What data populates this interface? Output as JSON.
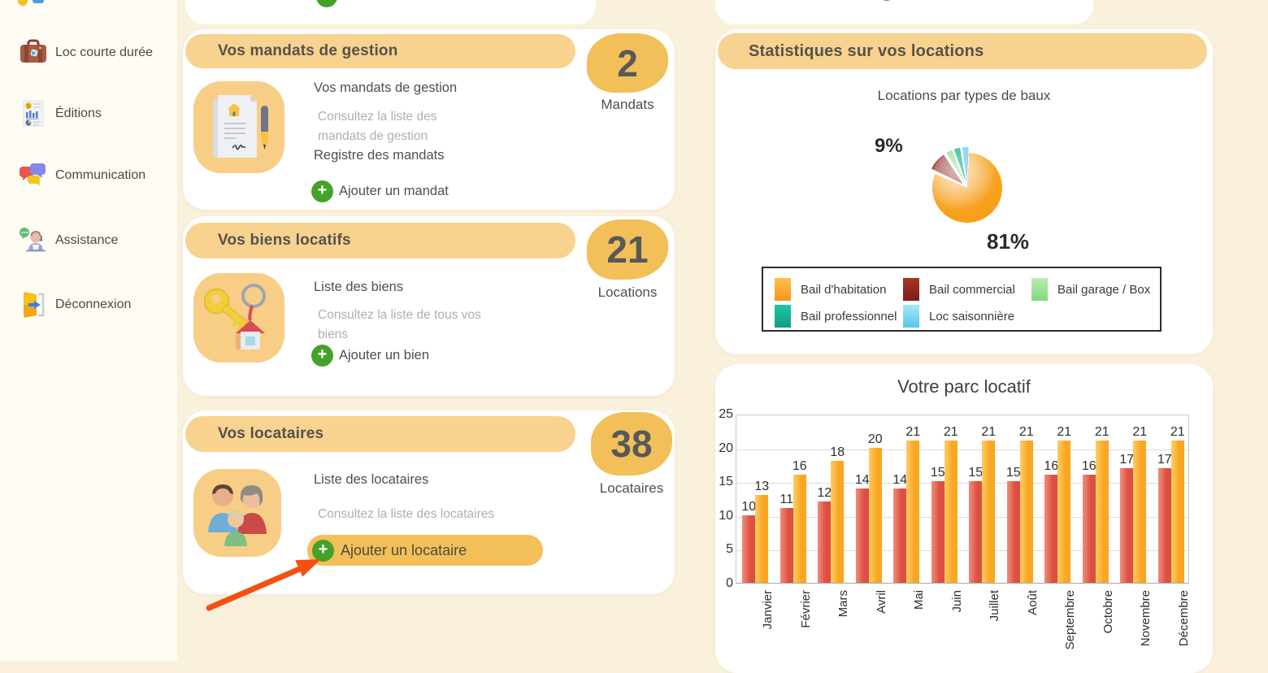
{
  "app": {
    "background": "#FAF1DD",
    "accent_pill": "#F8D28F",
    "accent_badge": "#F2BF58",
    "accent_green": "#43A22A",
    "arrow_color": "#F4500F"
  },
  "sidebar": {
    "items": [
      {
        "label": "Loc courte durée",
        "icon": "suitcase-icon"
      },
      {
        "label": "Éditions",
        "icon": "report-icon"
      },
      {
        "label": "Communication",
        "icon": "chat-bubbles-icon"
      },
      {
        "label": "Assistance",
        "icon": "support-agent-icon"
      },
      {
        "label": "Déconnexion",
        "icon": "logout-icon"
      }
    ]
  },
  "cards": {
    "mandates": {
      "title": "Vos mandats de gestion",
      "count": "2",
      "count_label": "Mandats",
      "link_main": "Vos mandats de gestion",
      "description": "Consultez la liste des mandats de gestion",
      "link_secondary": "Registre des mandats",
      "add_label": "Ajouter un mandat"
    },
    "properties": {
      "title": "Vos biens locatifs",
      "count": "21",
      "count_label": "Locations",
      "link_main": "Liste des biens",
      "description": "Consultez la liste de tous vos biens",
      "add_label": "Ajouter un bien"
    },
    "tenants": {
      "title": "Vos locataires",
      "count": "38",
      "count_label": "Locataires",
      "link_main": "Liste des locataires",
      "description": "Consultez la liste des locataires",
      "add_label": "Ajouter un locataire"
    }
  },
  "stats_section": {
    "header": "Statistiques sur vos locations"
  },
  "chart_data": [
    {
      "type": "pie",
      "title": "Locations par types de baux",
      "slices": [
        {
          "label": "Bail d'habitation",
          "pct": 81,
          "data_label": "81%",
          "color": "#F9A01B",
          "color_light": "#FDC24D",
          "color_dark": "#F6941E"
        },
        {
          "label": "Bail commercial",
          "pct": 9,
          "data_label": "9%",
          "color": "#8C241F",
          "color_light": "#A93528",
          "color_dark": "#7E1D19"
        },
        {
          "label": "Bail garage / Box",
          "pct": 3.3,
          "data_label": "",
          "color": "#94DC8D",
          "color_light": "#BCEDB2",
          "color_dark": "#7ED87D"
        },
        {
          "label": "Bail professionnel",
          "pct": 3.3,
          "data_label": "",
          "color": "#1BB796",
          "color_light": "#1FC9A5",
          "color_dark": "#139A7F"
        },
        {
          "label": "Loc saisonnière",
          "pct": 3.4,
          "data_label": "",
          "color": "#7FD2EE",
          "color_light": "#A5E8FA",
          "color_dark": "#57C7E9"
        }
      ],
      "legend_position": "bottom"
    },
    {
      "type": "bar",
      "title": "Votre parc locatif",
      "categories": [
        "Janvier",
        "Février",
        "Mars",
        "Avril",
        "Mai",
        "Juin",
        "Juillet",
        "Août",
        "Septembre",
        "Octobre",
        "Novembre",
        "Décembre"
      ],
      "series": [
        {
          "name": "",
          "key": "red",
          "color": "#DC4F42",
          "color_light": "#EF8672",
          "values": [
            10,
            11,
            12,
            14,
            14,
            15,
            15,
            15,
            16,
            16,
            17,
            17
          ]
        },
        {
          "name": "",
          "key": "yellow",
          "color": "#F9A622",
          "color_light": "#FDCA5B",
          "values": [
            13,
            16,
            18,
            20,
            21,
            21,
            21,
            21,
            21,
            21,
            21,
            21
          ]
        }
      ],
      "ylim": [
        0,
        25
      ],
      "yticks": [
        0,
        5,
        10,
        15,
        20,
        25
      ],
      "grid": true
    }
  ]
}
